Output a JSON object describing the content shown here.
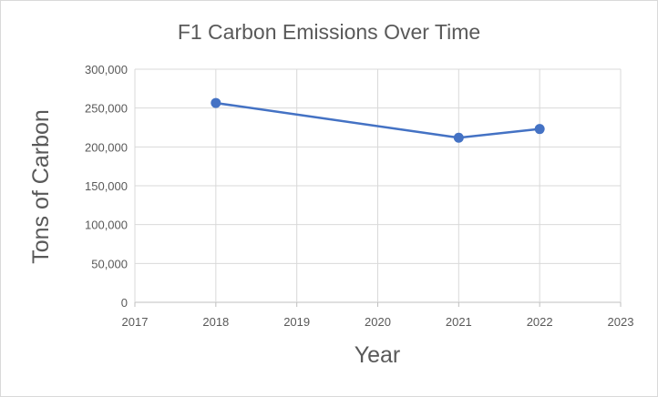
{
  "chart_data": {
    "type": "scatter",
    "title": "F1 Carbon Emissions Over Time",
    "xlabel": "Year",
    "ylabel": "Tons of Carbon",
    "xlim": [
      2017,
      2023
    ],
    "ylim": [
      0,
      300000
    ],
    "x_ticks": [
      "2017",
      "2018",
      "2019",
      "2020",
      "2021",
      "2022",
      "2023"
    ],
    "y_ticks": [
      "0",
      "50,000",
      "100,000",
      "150,000",
      "200,000",
      "250,000",
      "300,000"
    ],
    "grid": true,
    "legend": "none",
    "series": [
      {
        "points": [
          {
            "x": 2018,
            "y": 256551
          },
          {
            "x": 2021,
            "y": 211860
          },
          {
            "x": 2022,
            "y": 223031
          }
        ],
        "color": "#4472c4",
        "connected": true,
        "marker": "circle"
      }
    ]
  }
}
